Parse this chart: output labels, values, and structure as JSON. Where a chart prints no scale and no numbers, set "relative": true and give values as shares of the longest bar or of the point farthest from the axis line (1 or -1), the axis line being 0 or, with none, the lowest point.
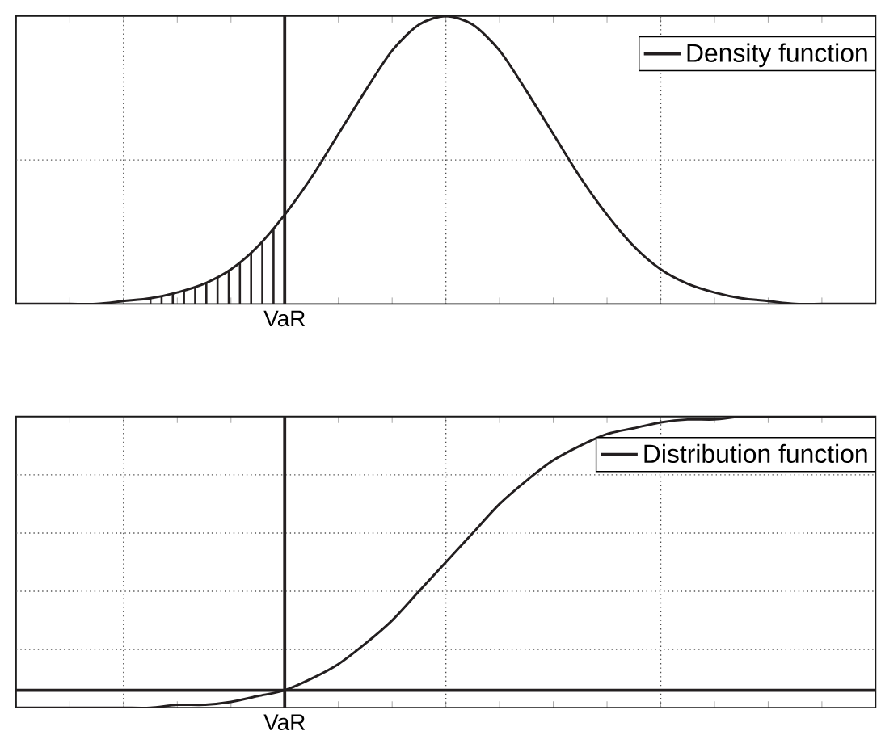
{
  "chart_data": [
    {
      "type": "line",
      "relative": true,
      "grid": true,
      "legend": "top right",
      "line_style": "solid",
      "marker": "none",
      "categories": [
        null,
        null,
        null,
        null,
        null,
        null,
        null,
        null,
        null,
        null,
        null,
        null,
        null,
        null,
        null,
        null,
        null,
        null,
        null,
        null,
        null,
        null,
        null,
        null,
        null,
        null,
        null,
        null,
        null,
        null,
        null,
        null,
        null
      ],
      "annotations": [
        "VaR"
      ],
      "series": [
        {
          "name": "Density function",
          "color": "#231f20",
          "values": [
            0,
            0,
            0,
            0,
            0.01,
            0.02,
            0.04,
            0.07,
            0.12,
            0.2,
            0.31,
            0.44,
            0.59,
            0.74,
            0.88,
            0.97,
            1,
            0.97,
            0.88,
            0.74,
            0.59,
            0.44,
            0.31,
            0.2,
            0.12,
            0.07,
            0.04,
            0.02,
            0.01,
            0,
            0,
            0,
            0
          ]
        }
      ],
      "ref_lines": [
        {
          "axis": "y",
          "value": 0.5,
          "line_style": "dotted",
          "color": "#555555"
        }
      ]
    },
    {
      "type": "line",
      "relative": true,
      "grid": true,
      "legend": "top right",
      "line_style": "solid",
      "marker": "none",
      "categories": [
        null,
        null,
        null,
        null,
        null,
        null,
        null,
        null,
        null,
        null,
        null,
        null,
        null,
        null,
        null,
        null,
        null,
        null,
        null,
        null,
        null,
        null,
        null,
        null,
        null,
        null,
        null,
        null,
        null,
        null,
        null,
        null,
        null
      ],
      "annotations": [
        "VaR"
      ],
      "series": [
        {
          "name": "Distribution function",
          "color": "#231f20",
          "values": [
            0,
            0,
            0,
            0,
            0,
            0,
            0.01,
            0.01,
            0.02,
            0.04,
            0.06,
            0.1,
            0.15,
            0.22,
            0.3,
            0.4,
            0.5,
            0.6,
            0.7,
            0.78,
            0.85,
            0.9,
            0.94,
            0.96,
            0.98,
            0.99,
            0.99,
            1,
            1,
            1,
            1,
            1,
            1
          ]
        }
      ],
      "ref_lines": [
        {
          "axis": "y",
          "value": 0.2,
          "line_style": "dotted",
          "color": "#555555"
        },
        {
          "axis": "y",
          "value": 0.4,
          "line_style": "dotted",
          "color": "#555555"
        },
        {
          "axis": "y",
          "value": 0.6,
          "line_style": "dotted",
          "color": "#555555"
        },
        {
          "axis": "y",
          "value": 0.8,
          "line_style": "dotted",
          "color": "#555555"
        },
        {
          "axis": "y",
          "value": 0.06,
          "line_style": "solid",
          "color": "#231f20"
        }
      ]
    }
  ]
}
